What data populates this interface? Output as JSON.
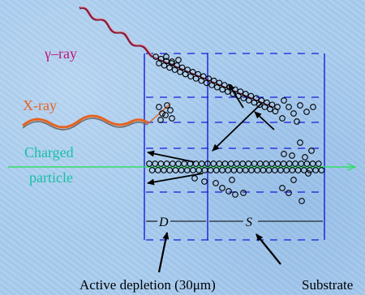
{
  "labels": {
    "gamma": "γ–ray",
    "xray": "X-ray",
    "charged_line1": "Charged",
    "charged_line2": "particle",
    "depletion_symbol": "D",
    "substrate_symbol": "S",
    "active_depletion": "Active depletion (30μm)",
    "substrate": "Substrate"
  },
  "colors": {
    "background": "#a9cdf0",
    "detector_lines": "#1a1ad8",
    "gamma_label": "#c0147a",
    "xray_label": "#e8621e",
    "charged_label": "#16c0a6",
    "particle_track": "#33dd66",
    "carriers": "#000000",
    "arrows": "#000000"
  }
}
